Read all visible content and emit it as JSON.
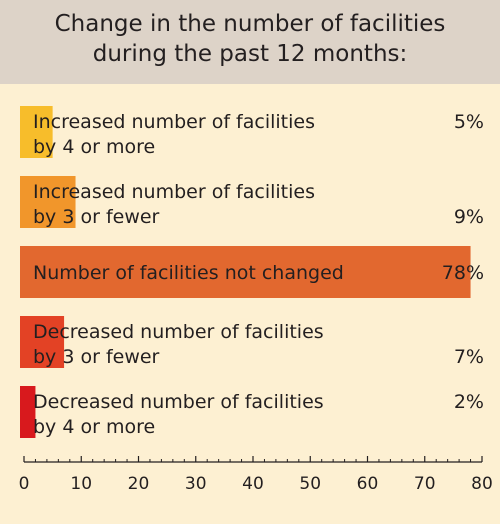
{
  "chart_data": {
    "type": "bar",
    "orientation": "horizontal",
    "title": "Change in the number of facilities during the past 12 months:",
    "title_lines": [
      "Change in the number of facilities",
      "during the past 12 months:"
    ],
    "categories": [
      {
        "lines": [
          "Increased number of facilities",
          "by 4 or more"
        ]
      },
      {
        "lines": [
          "Increased number of facilities",
          "by 3 or fewer"
        ]
      },
      {
        "lines": [
          "Number of facilities not changed"
        ]
      },
      {
        "lines": [
          "Decreased number of facilities",
          "by 3 or fewer"
        ]
      },
      {
        "lines": [
          "Decreased number of facilities",
          "by 4 or more"
        ]
      }
    ],
    "values": [
      5,
      9,
      78,
      7,
      2
    ],
    "value_labels": [
      "5%",
      "9%",
      "78%",
      "7%",
      "2%"
    ],
    "colors": [
      "#f7bd2b",
      "#f1962b",
      "#e2682f",
      "#e34225",
      "#d8191d"
    ],
    "xlim": [
      0,
      80
    ],
    "xticks": [
      0,
      10,
      20,
      30,
      40,
      50,
      60,
      70,
      80
    ],
    "grid": false,
    "legend": "none"
  },
  "style": {
    "background": "#fdf0d2",
    "header_background": "#ddd3c8",
    "text_color": "#231f20"
  }
}
